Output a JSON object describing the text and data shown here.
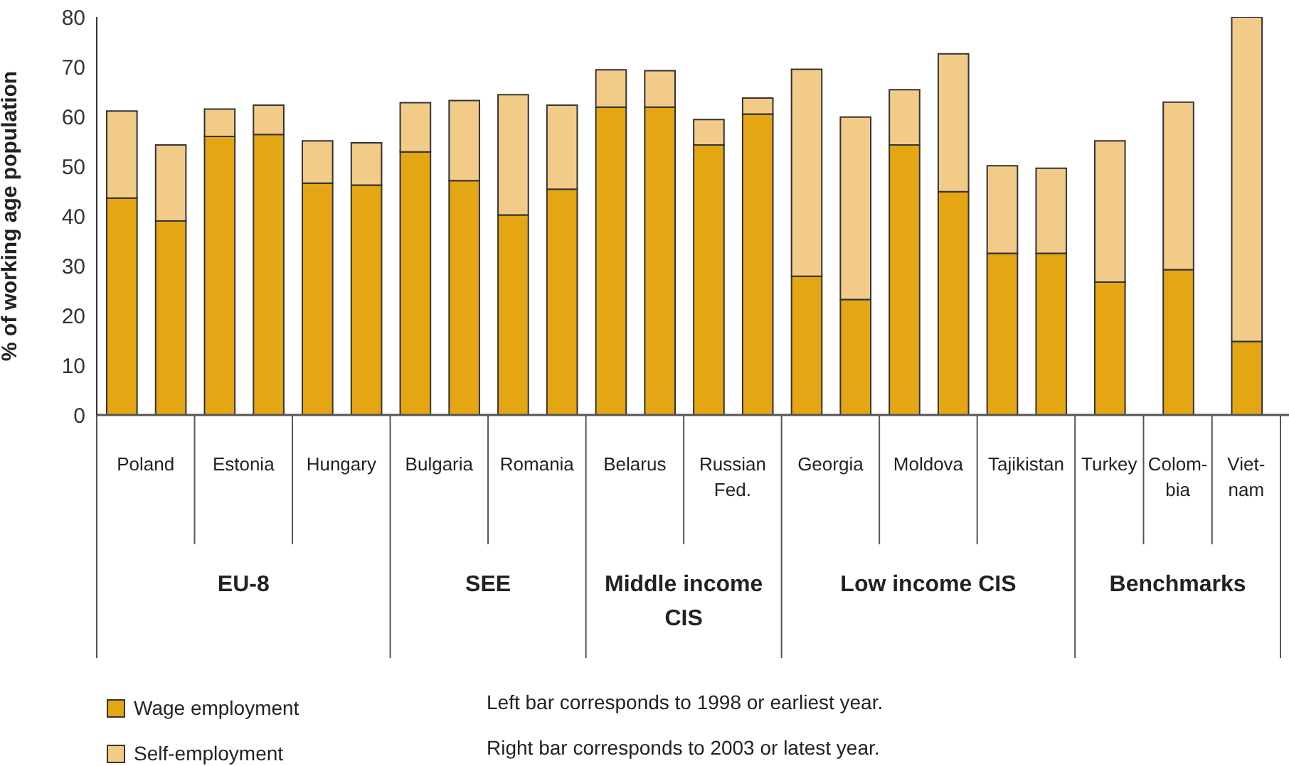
{
  "chart_data": {
    "type": "bar",
    "stacked": true,
    "ylabel": "% of working age population",
    "ylim": [
      0,
      80
    ],
    "yticks": [
      0,
      10,
      20,
      30,
      40,
      50,
      60,
      70,
      80
    ],
    "legend": "bottom left",
    "categories": [
      "Poland",
      null,
      "Estonia",
      null,
      "Hungary",
      null,
      "Bulgaria",
      null,
      "Romania",
      null,
      "Belarus",
      null,
      "Russian Fed.",
      null,
      "Georgia",
      null,
      "Moldova",
      null,
      "Tajikistan",
      null,
      "Turkey",
      "Colom-bia",
      "Viet-nam"
    ],
    "series": [
      {
        "name": "Wage employment",
        "color": "#e5a614",
        "values": [
          43.6,
          39.0,
          56.0,
          56.4,
          46.6,
          46.2,
          52.9,
          47.1,
          40.2,
          45.4,
          61.9,
          61.9,
          54.3,
          60.5,
          27.9,
          23.2,
          54.3,
          44.9,
          32.5,
          32.5,
          26.7,
          29.2,
          14.8
        ]
      },
      {
        "name": "Self-employment",
        "color": "#f3cb89",
        "values": [
          17.5,
          15.3,
          5.5,
          5.9,
          8.5,
          8.5,
          9.9,
          16.1,
          24.2,
          16.9,
          7.5,
          7.3,
          5.1,
          3.2,
          41.6,
          36.7,
          11.1,
          27.7,
          17.6,
          17.1,
          28.4,
          33.7,
          65.2
        ]
      }
    ],
    "annotations": [
      "EU-8",
      "SEE",
      "Middle income CIS",
      "Low income CIS",
      "Benchmarks",
      "Left bar corresponds to 1998 or earliest year.",
      "Right bar corresponds to 2003 or latest year."
    ]
  }
}
